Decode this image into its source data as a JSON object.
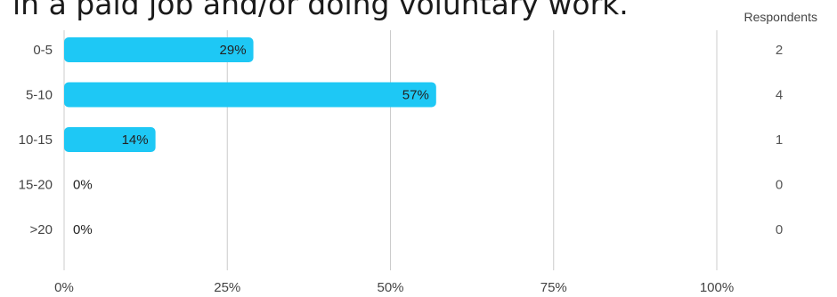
{
  "title": "in a paid job and/or doing voluntary work.",
  "respondents_header": "Respondents",
  "colors": {
    "bar": "#1ec8f5",
    "grid": "#cccccc",
    "text": "#444444"
  },
  "chart_data": {
    "type": "bar",
    "orientation": "horizontal",
    "title": "in a paid job and/or doing voluntary work.",
    "categories": [
      "0-5",
      "5-10",
      "10-15",
      "15-20",
      ">20"
    ],
    "values": [
      29,
      57,
      14,
      0,
      0
    ],
    "value_labels": [
      "29%",
      "57%",
      "14%",
      "0%",
      "0%"
    ],
    "respondents": [
      2,
      4,
      1,
      0,
      0
    ],
    "xlim": [
      0,
      100
    ],
    "xticks": [
      "0%",
      "25%",
      "50%",
      "75%",
      "100%"
    ],
    "grid": true,
    "xlabel": "",
    "ylabel": ""
  }
}
